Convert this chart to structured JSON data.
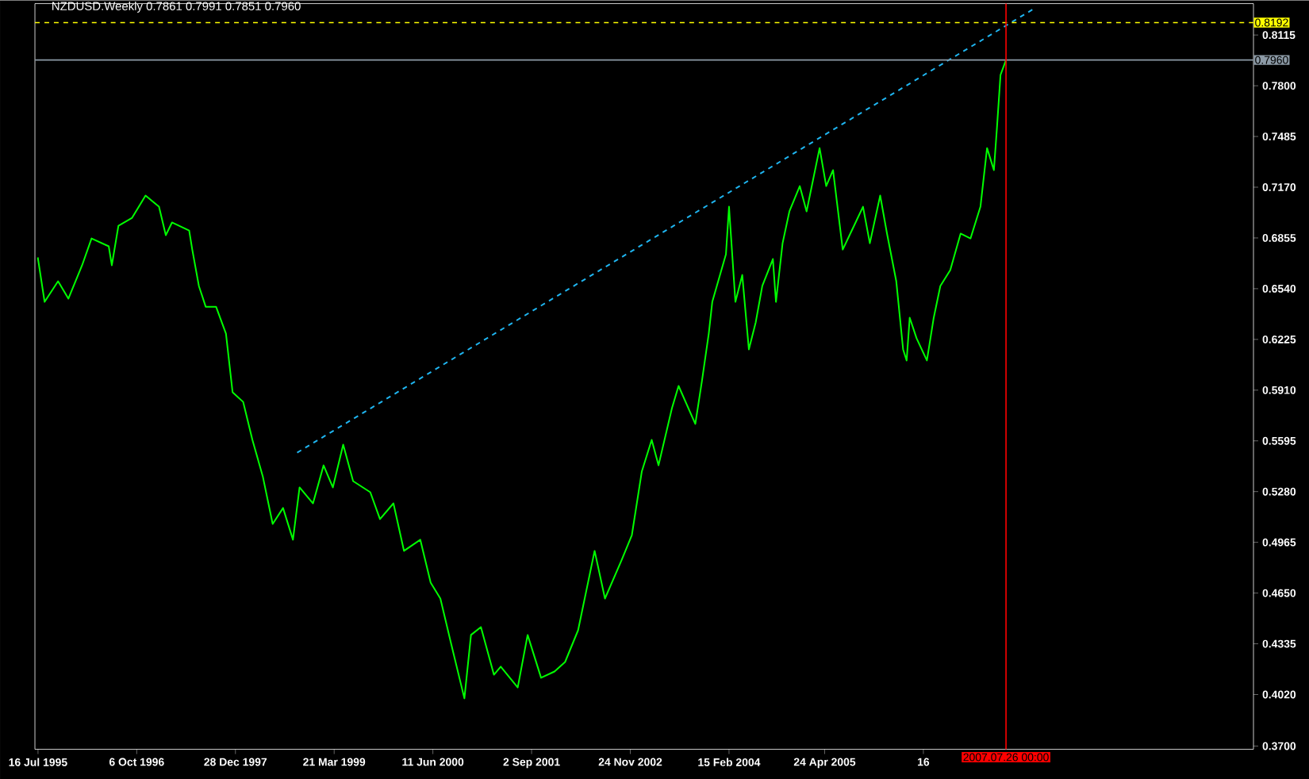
{
  "chart_data": {
    "type": "line",
    "title": "NZDUSD.Weekly  0.7861 0.7991 0.7851 0.7960",
    "xlim": [
      "1995-07-02",
      "2010-08-22"
    ],
    "ylim": [
      0.368,
      0.831
    ],
    "xticks": [
      {
        "value": "1995-07-16",
        "label": "16 Jul 1995"
      },
      {
        "value": "1996-10-06",
        "label": "6 Oct 1996"
      },
      {
        "value": "1997-12-28",
        "label": "28 Dec 1997"
      },
      {
        "value": "1999-03-21",
        "label": "21 Mar 1999"
      },
      {
        "value": "2000-06-11",
        "label": "11 Jun 2000"
      },
      {
        "value": "2001-09-02",
        "label": "2 Sep 2001"
      },
      {
        "value": "2002-11-24",
        "label": "24 Nov 2002"
      },
      {
        "value": "2004-02-15",
        "label": "15 Feb 2004"
      },
      {
        "value": "2005-04-24",
        "label": "24 Apr 2005"
      },
      {
        "value": "2006-07-16",
        "label": "16"
      }
    ],
    "yticks": [
      {
        "value": 0.37,
        "label": "0.3700"
      },
      {
        "value": 0.402,
        "label": "0.4020"
      },
      {
        "value": 0.4335,
        "label": "0.4335"
      },
      {
        "value": 0.465,
        "label": "0.4650"
      },
      {
        "value": 0.4965,
        "label": "0.4965"
      },
      {
        "value": 0.528,
        "label": "0.5280"
      },
      {
        "value": 0.5595,
        "label": "0.5595"
      },
      {
        "value": 0.591,
        "label": "0.5910"
      },
      {
        "value": 0.6225,
        "label": "0.6225"
      },
      {
        "value": 0.654,
        "label": "0.6540"
      },
      {
        "value": 0.6855,
        "label": "0.6855"
      },
      {
        "value": 0.717,
        "label": "0.7170"
      },
      {
        "value": 0.7485,
        "label": "0.7485"
      },
      {
        "value": 0.78,
        "label": "0.7800"
      },
      {
        "value": 0.8115,
        "label": "0.8115"
      }
    ],
    "series": [
      {
        "color": "#00ff00",
        "line_style": "solid",
        "x": [
          "1995-07-15",
          "1995-08-15",
          "1995-10-15",
          "1995-12-01",
          "1996-02-01",
          "1996-03-15",
          "1996-06-01",
          "1996-06-15",
          "1996-07-15",
          "1996-09-15",
          "1996-11-15",
          "1997-01-15",
          "1997-02-15",
          "1997-03-15",
          "1997-06-01",
          "1997-06-15",
          "1997-07-15",
          "1997-08-15",
          "1997-10-01",
          "1997-11-15",
          "1997-12-15",
          "1998-02-01",
          "1998-03-15",
          "1998-05-01",
          "1998-06-15",
          "1998-08-01",
          "1998-09-15",
          "1998-10-15",
          "1998-12-15",
          "1999-02-01",
          "1999-03-15",
          "1999-05-01",
          "1999-06-15",
          "1999-09-01",
          "1999-10-15",
          "1999-12-15",
          "2000-02-01",
          "2000-04-15",
          "2000-06-01",
          "2000-07-15",
          "2000-09-01",
          "2000-11-01",
          "2000-12-01",
          "2001-01-15",
          "2001-03-15",
          "2001-04-15",
          "2001-07-01",
          "2001-08-15",
          "2001-10-15",
          "2001-12-15",
          "2002-02-01",
          "2002-04-01",
          "2002-06-15",
          "2002-08-01",
          "2002-10-15",
          "2002-12-01",
          "2003-01-15",
          "2003-03-01",
          "2003-04-01",
          "2003-06-01",
          "2003-07-01",
          "2003-09-15",
          "2003-10-15",
          "2003-11-15",
          "2003-12-01",
          "2004-02-01",
          "2004-02-15",
          "2004-03-15",
          "2004-04-15",
          "2004-05-15",
          "2004-06-15",
          "2004-07-15",
          "2004-09-01",
          "2004-09-15",
          "2004-10-15",
          "2004-11-15",
          "2005-01-01",
          "2005-02-01",
          "2005-04-01",
          "2005-05-01",
          "2005-06-01",
          "2005-07-15",
          "2005-09-01",
          "2005-10-15",
          "2005-11-15",
          "2006-01-01",
          "2006-02-01",
          "2006-03-15",
          "2006-04-15",
          "2006-05-01",
          "2006-05-15",
          "2006-06-15",
          "2006-08-01",
          "2006-09-01",
          "2006-10-01",
          "2006-11-15",
          "2007-01-01",
          "2007-02-15",
          "2007-04-01",
          "2007-05-01",
          "2007-06-01",
          "2007-06-15",
          "2007-07-01",
          "2007-07-26"
        ],
        "values": [
          0.6734,
          0.6458,
          0.6586,
          0.6478,
          0.6685,
          0.6852,
          0.6803,
          0.6685,
          0.6931,
          0.698,
          0.7118,
          0.7049,
          0.6872,
          0.6951,
          0.6901,
          0.6783,
          0.6557,
          0.6428,
          0.6428,
          0.6261,
          0.5897,
          0.5837,
          0.5601,
          0.5375,
          0.5079,
          0.5178,
          0.4981,
          0.5306,
          0.5207,
          0.5443,
          0.5306,
          0.5572,
          0.5345,
          0.5276,
          0.5109,
          0.5207,
          0.4912,
          0.4981,
          0.4715,
          0.4616,
          0.434,
          0.3996,
          0.439,
          0.4439,
          0.4143,
          0.4193,
          0.4064,
          0.439,
          0.4124,
          0.4163,
          0.4222,
          0.4419,
          0.4912,
          0.4616,
          0.4853,
          0.501,
          0.5404,
          0.5601,
          0.5443,
          0.5798,
          0.5936,
          0.57,
          0.5966,
          0.6261,
          0.6458,
          0.6754,
          0.7049,
          0.6458,
          0.6625,
          0.6163,
          0.633,
          0.6557,
          0.6724,
          0.6458,
          0.6822,
          0.702,
          0.7177,
          0.702,
          0.7413,
          0.7177,
          0.7276,
          0.6783,
          0.6921,
          0.7049,
          0.6822,
          0.7118,
          0.6882,
          0.6586,
          0.6163,
          0.6094,
          0.636,
          0.6232,
          0.6094,
          0.636,
          0.6557,
          0.6655,
          0.6882,
          0.6852,
          0.7049,
          0.7413,
          0.7276,
          0.7541,
          0.7867,
          0.796
        ]
      },
      {
        "color": "#1fb5f0",
        "line_style": "dashed",
        "x": [
          "1998-10-04",
          "2007-12-02"
        ],
        "values": [
          0.5522,
          0.828
        ]
      }
    ],
    "ref_lines": [
      {
        "axis": "y",
        "value": 0.8192,
        "label": "0.8192",
        "color": "#ffff00",
        "line_style": "dashed"
      },
      {
        "axis": "y",
        "value": 0.796,
        "label": "0.7960",
        "color": "#8c9aa6",
        "line_style": "solid"
      },
      {
        "axis": "x",
        "value": "2007-07-26",
        "label": "2007.07.26 00:00",
        "color": "#ff0000",
        "line_style": "solid"
      }
    ]
  }
}
